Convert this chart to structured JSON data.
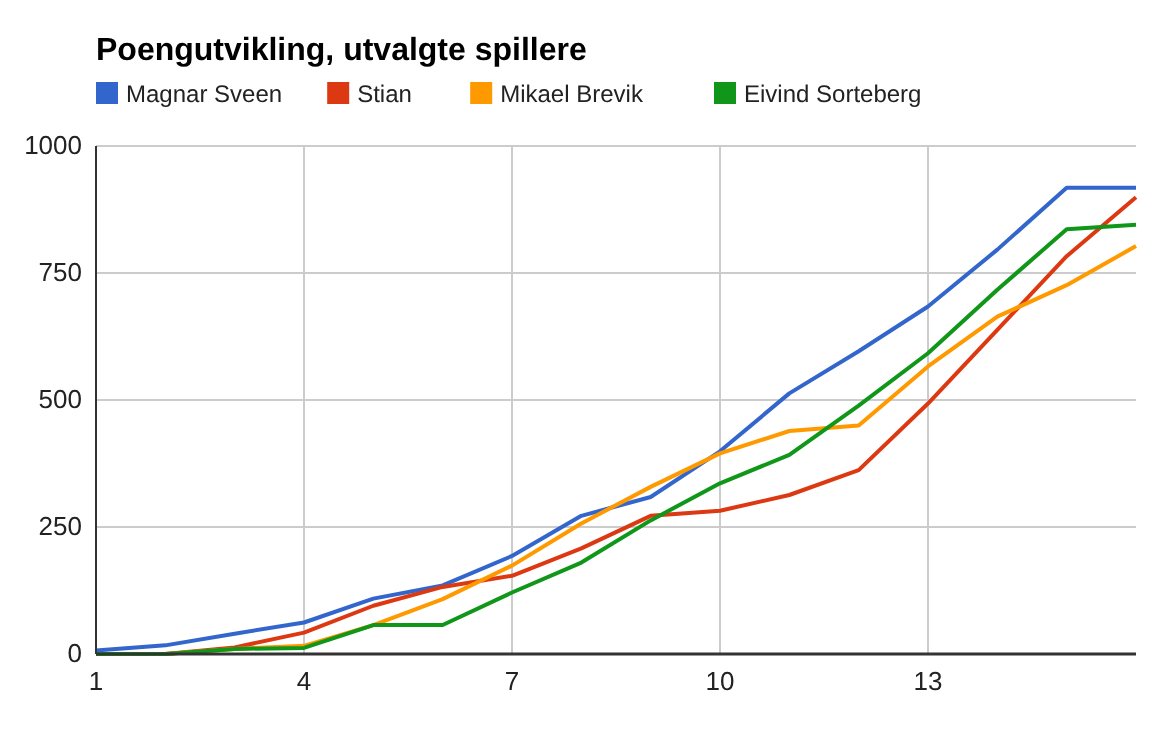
{
  "chart_data": {
    "type": "line",
    "title": "Poengutvikling, utvalgte spillere",
    "x": [
      1,
      2,
      3,
      4,
      5,
      6,
      7,
      8,
      9,
      10,
      11,
      12,
      13,
      14,
      15,
      16
    ],
    "series": [
      {
        "name": "Magnar Sveen",
        "color": "#3366cc",
        "values": [
          7,
          17,
          40,
          62,
          109,
          135,
          193,
          272,
          309,
          399,
          513,
          596,
          684,
          796,
          918,
          918
        ]
      },
      {
        "name": "Stian",
        "color": "#dc3912",
        "values": [
          0,
          0,
          13,
          42,
          95,
          132,
          154,
          208,
          272,
          282,
          313,
          362,
          493,
          638,
          783,
          899
        ]
      },
      {
        "name": "Mikael Brevik",
        "color": "#ff9900",
        "values": [
          0,
          0,
          10,
          16,
          57,
          108,
          174,
          257,
          329,
          395,
          439,
          450,
          566,
          664,
          726,
          803
        ]
      },
      {
        "name": "Eivind Sorteberg",
        "color": "#109618",
        "values": [
          0,
          0,
          10,
          12,
          57,
          57,
          121,
          180,
          263,
          336,
          392,
          489,
          592,
          717,
          836,
          845
        ]
      }
    ],
    "xlim": [
      1,
      16
    ],
    "xticks": [
      1,
      4,
      7,
      10,
      13
    ],
    "ylim": [
      0,
      1000
    ],
    "yticks": [
      0,
      250,
      500,
      750,
      1000
    ],
    "grid": true,
    "legend": "top left",
    "marker": "none",
    "line_style": "solid"
  }
}
